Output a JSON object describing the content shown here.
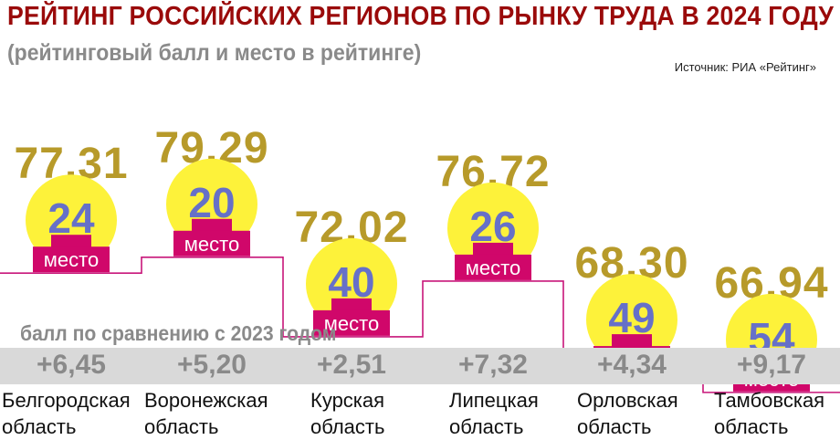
{
  "title": "РЕЙТИНГ РОССИЙСКИХ РЕГИОНОВ ПО РЫНКУ ТРУДА В 2024 ГОДУ",
  "subtitle": "(рейтинговый балл и место в рейтинге)",
  "source": "Источник: РИА «Рейтинг»",
  "change_caption": "балл по сравнению с 2023 годом",
  "place_label": "место",
  "colors": {
    "title": "#9a0a0a",
    "score": "#b79a2a",
    "rank": "#6670c8",
    "circle": "#fdf23a",
    "badge": "#d0076a",
    "line": "#c8167a",
    "band": "#d9d9d9"
  },
  "chart_data": {
    "type": "table",
    "title": "РЕЙТИНГ РОССИЙСКИХ РЕГИОНОВ ПО РЫНКУ ТРУДА В 2024 ГОДУ",
    "subtitle": "(рейтинговый балл и место в рейтинге)",
    "categories": [
      [
        "Белгородская",
        "область"
      ],
      [
        "Воронежская",
        "область"
      ],
      [
        "Курская",
        "область"
      ],
      [
        "Липецкая",
        "область"
      ],
      [
        "Орловская",
        "область"
      ],
      [
        "Тамбовская",
        "область"
      ]
    ],
    "scores": [
      "77,31",
      "79,29",
      "72,02",
      "76,72",
      "68,30",
      "66,94"
    ],
    "score_values": [
      77.31,
      79.29,
      72.02,
      76.72,
      68.3,
      66.94
    ],
    "ranks": [
      "24",
      "20",
      "40",
      "26",
      "49",
      "54"
    ],
    "changes": [
      "+6,45",
      "+5,20",
      "+2,51",
      "+7,32",
      "+4,34",
      "+9,17"
    ]
  }
}
